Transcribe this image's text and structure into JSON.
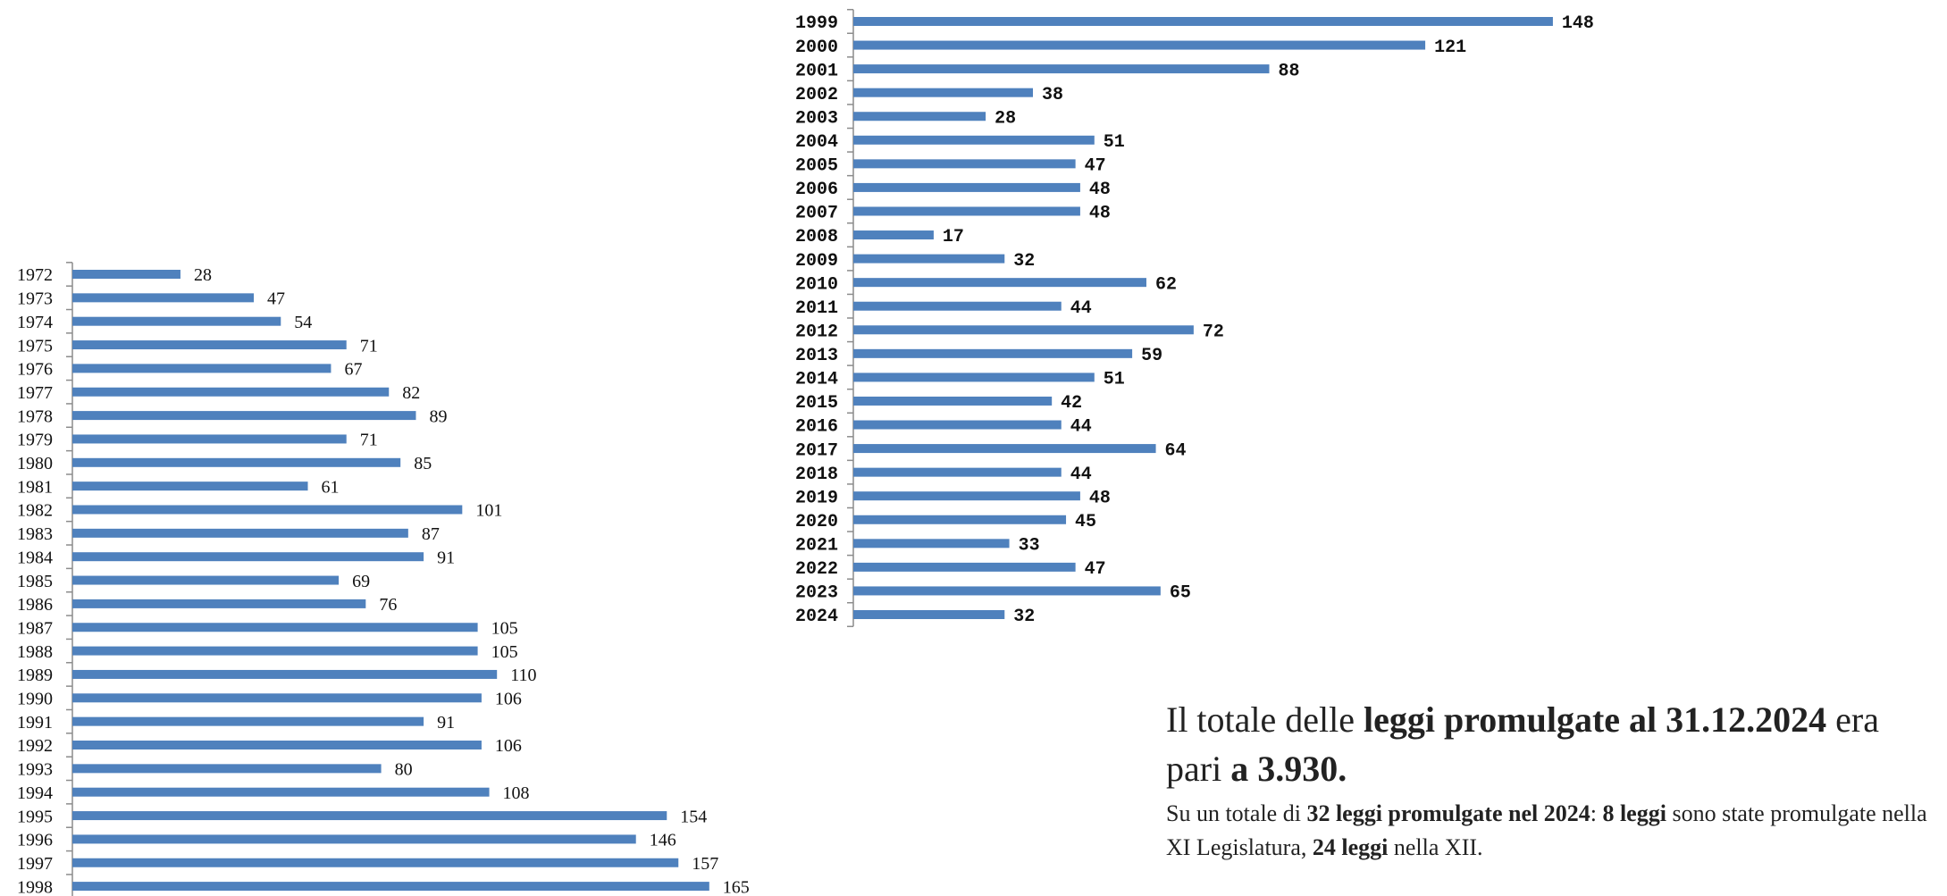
{
  "chart_data": [
    {
      "type": "bar",
      "orientation": "horizontal",
      "categories": [
        "1972",
        "1973",
        "1974",
        "1975",
        "1976",
        "1977",
        "1978",
        "1979",
        "1980",
        "1981",
        "1982",
        "1983",
        "1984",
        "1985",
        "1986",
        "1987",
        "1988",
        "1989",
        "1990",
        "1991",
        "1992",
        "1993",
        "1994",
        "1995",
        "1996",
        "1997",
        "1998"
      ],
      "values": [
        28,
        47,
        54,
        71,
        67,
        82,
        89,
        71,
        85,
        61,
        101,
        87,
        91,
        69,
        76,
        105,
        105,
        110,
        106,
        91,
        106,
        80,
        108,
        154,
        146,
        157,
        165
      ],
      "colors": {
        "bar": "#4f81bd",
        "axis": "#8c8c8c",
        "text": "#111111"
      }
    },
    {
      "type": "bar",
      "orientation": "horizontal",
      "categories": [
        "1999",
        "2000",
        "2001",
        "2002",
        "2003",
        "2004",
        "2005",
        "2006",
        "2007",
        "2008",
        "2009",
        "2010",
        "2011",
        "2012",
        "2013",
        "2014",
        "2015",
        "2016",
        "2017",
        "2018",
        "2019",
        "2020",
        "2021",
        "2022",
        "2023",
        "2024"
      ],
      "values": [
        148,
        121,
        88,
        38,
        28,
        51,
        47,
        48,
        48,
        17,
        32,
        62,
        44,
        72,
        59,
        51,
        42,
        44,
        64,
        44,
        48,
        45,
        33,
        47,
        65,
        32
      ],
      "colors": {
        "bar": "#4f81bd",
        "axis": "#8c8c8c",
        "text": "#111111"
      }
    }
  ],
  "summary": {
    "line1_pre": "Il totale delle ",
    "line1_bold": "leggi promulgate al 31.12.2024",
    "line1_post": " era",
    "line2_pre": "pari ",
    "line2_bold": "a 3.930.",
    "detail_1": "Su un totale di ",
    "detail_2_bold": "32 leggi promulgate  nel 2024",
    "detail_3": ": ",
    "detail_4_bold": "8 leggi",
    "detail_5": " sono state promulgate nella XI Legislatura, ",
    "detail_6_bold": "24 leggi",
    "detail_7": " nella XII."
  }
}
